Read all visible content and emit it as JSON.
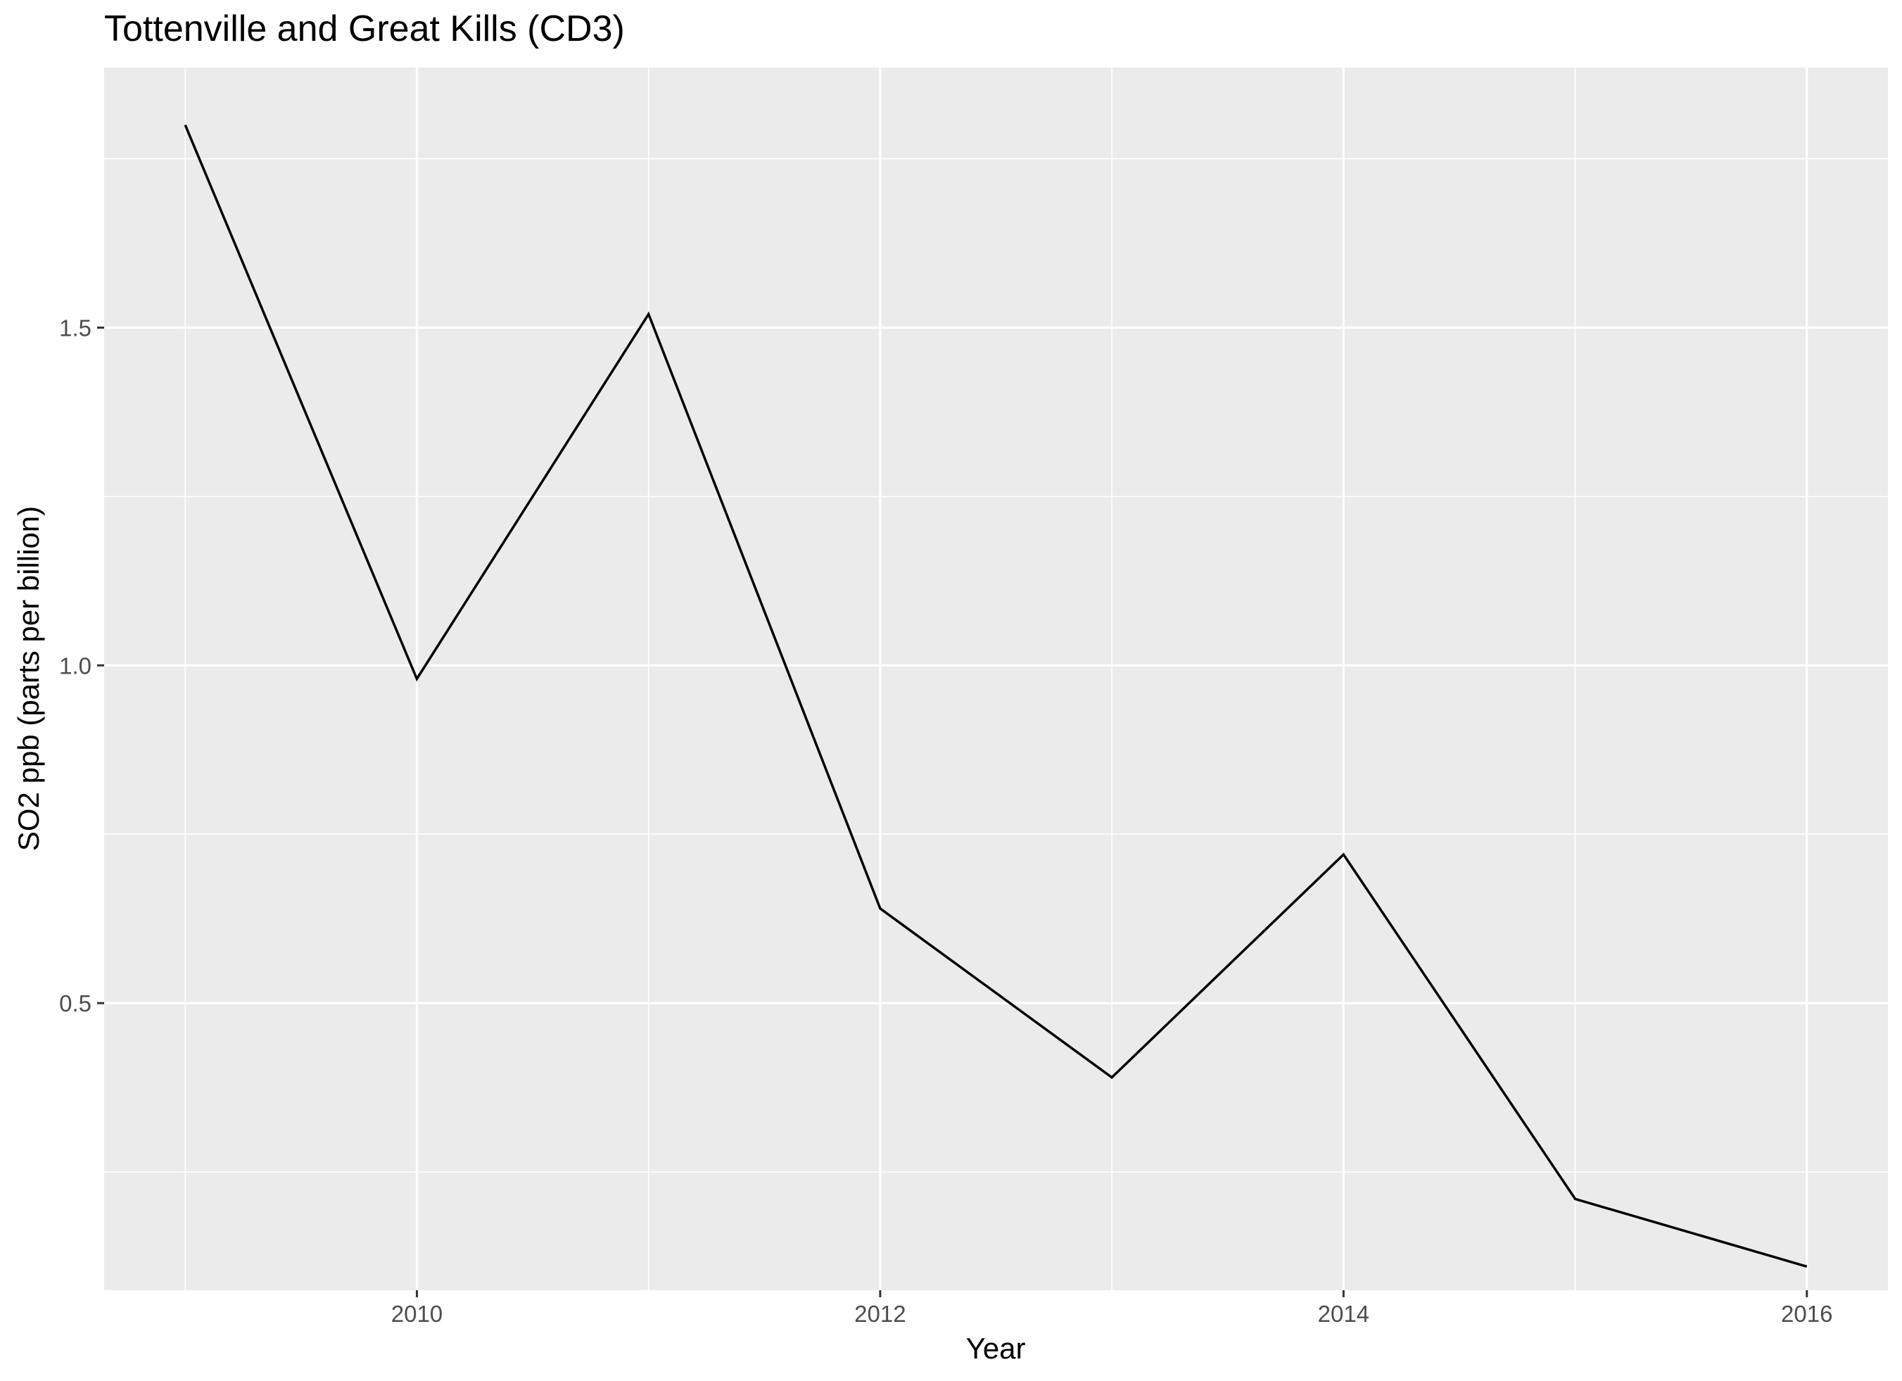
{
  "chart_data": {
    "type": "line",
    "title": "Tottenville and Great Kills (CD3)",
    "xlabel": "Year",
    "ylabel": "SO2 ppb (parts per billion)",
    "x": [
      2009,
      2010,
      2011,
      2012,
      2013,
      2014,
      2015,
      2016
    ],
    "series": [
      {
        "values": [
          1.8,
          0.98,
          1.52,
          0.64,
          0.39,
          0.72,
          0.21,
          0.11
        ]
      }
    ],
    "xlim": [
      2008.65,
      2016.35
    ],
    "ylim": [
      0.075,
      1.885
    ],
    "x_ticks": [
      2010,
      2012,
      2014,
      2016
    ],
    "x_tick_labels": [
      "2010",
      "2012",
      "2014",
      "2016"
    ],
    "y_ticks": [
      0.5,
      1.0,
      1.5
    ],
    "y_tick_labels": [
      "0.5",
      "1.0",
      "1.5"
    ],
    "grid": true,
    "colors": {
      "panel_background": "#ebebeb",
      "grid_line": "#ffffff",
      "series_line": "#000000",
      "tick_text": "#4d4d4d",
      "tick_mark": "#333333"
    }
  }
}
